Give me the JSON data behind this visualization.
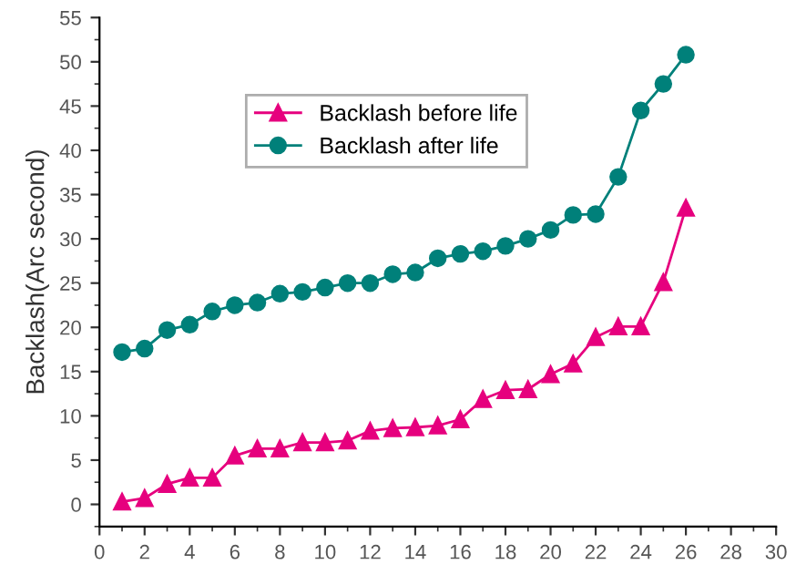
{
  "chart_data": {
    "type": "line",
    "ylabel": "Backlash(Arc second)",
    "x": [
      1,
      2,
      3,
      4,
      5,
      6,
      7,
      8,
      9,
      10,
      11,
      12,
      13,
      14,
      15,
      16,
      17,
      18,
      19,
      20,
      21,
      22,
      23,
      24,
      25,
      26
    ],
    "series": [
      {
        "name": "Backlash before life",
        "color": "#e6007e",
        "marker": "triangle",
        "values": [
          0.3,
          0.7,
          2.3,
          3,
          3,
          5.5,
          6.3,
          6.3,
          7,
          7,
          7.2,
          8.3,
          8.6,
          8.7,
          8.9,
          9.6,
          11.9,
          12.9,
          13,
          14.7,
          15.9,
          18.9,
          20.1,
          20.1,
          25.1,
          33.5
        ]
      },
      {
        "name": "Backlash after life",
        "color": "#00807a",
        "marker": "circle",
        "values": [
          17.2,
          17.6,
          19.7,
          20.3,
          21.8,
          22.5,
          22.8,
          23.8,
          24,
          24.5,
          25,
          25,
          26,
          26.2,
          27.8,
          28.3,
          28.6,
          29.2,
          30,
          31,
          32.7,
          32.8,
          37,
          44.5,
          47.5,
          50.8
        ]
      }
    ],
    "xlim": [
      0,
      30
    ],
    "xticks": [
      0,
      2,
      4,
      6,
      8,
      10,
      12,
      14,
      16,
      18,
      20,
      22,
      24,
      26,
      28,
      30
    ],
    "ylim": [
      -2.5,
      55
    ],
    "yticks": [
      0,
      5,
      10,
      15,
      20,
      25,
      30,
      35,
      40,
      45,
      50,
      55
    ],
    "grid": false,
    "legend": "top left",
    "line_style": "solid"
  }
}
